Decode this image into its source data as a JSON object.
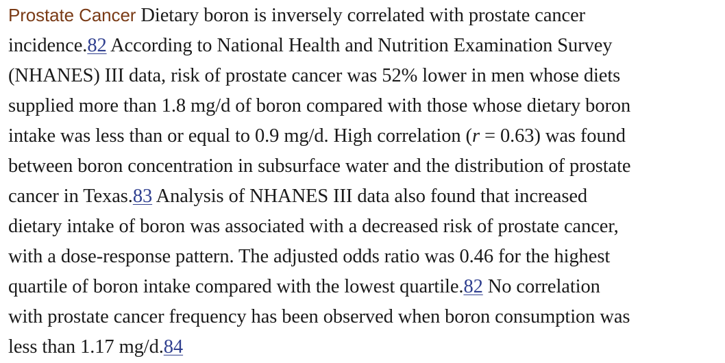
{
  "section": {
    "heading": "Prostate Cancer",
    "lines": {
      "l1_a": "Dietary boron is inversely correlated with prostate cancer",
      "l2_a": "incidence.",
      "l2_ref": "82",
      "l2_b": " According to National Health and Nutrition Examination Survey",
      "l3": "(NHANES) III data, risk of prostate cancer was 52% lower in men whose diets",
      "l4": "supplied more than 1.8 mg/d of boron compared with those whose dietary boron",
      "l5_a": "intake was less than or equal to 0.9 mg/d. High correlation (",
      "l5_r": "r",
      "l5_b": " = 0.63) was found",
      "l6": "between boron concentration in subsurface water and the distribution of prostate",
      "l7_a": "cancer in Texas.",
      "l7_ref": "83",
      "l7_b": " Analysis of NHANES III data also found that increased",
      "l8": "dietary intake of boron was associated with a decreased risk of prostate cancer,",
      "l9": "with a dose-response pattern. The adjusted odds ratio was 0.46 for the highest",
      "l10_a": "quartile of boron intake compared with the lowest quartile.",
      "l10_ref": "82",
      "l10_b": " No correlation",
      "l11": "with prostate cancer frequency has been observed when boron consumption was",
      "l12_a": "less than 1.17 mg/d.",
      "l12_ref": "84"
    }
  },
  "colors": {
    "heading": "#7a3b16",
    "link": "#2f3f8f",
    "text": "#1a1a1a"
  }
}
